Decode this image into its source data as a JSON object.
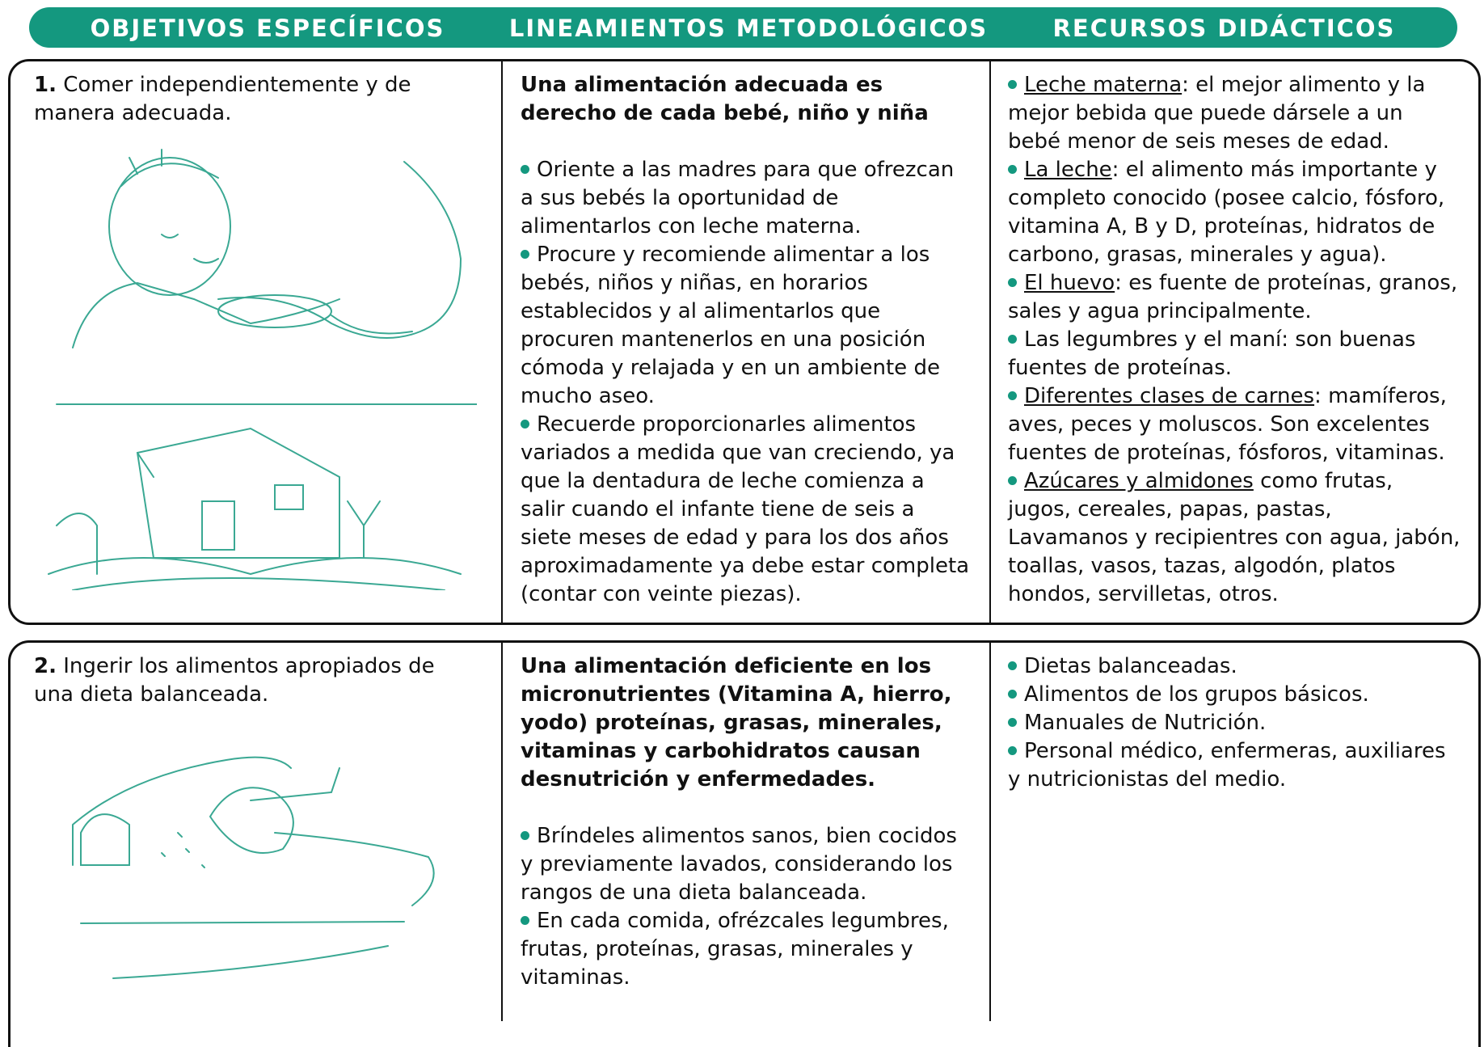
{
  "header": {
    "columns": [
      "OBJETIVOS ESPECÍFICOS",
      "LINEAMIENTOS METODOLÓGICOS",
      "RECURSOS DIDÁCTICOS"
    ]
  },
  "rows": [
    {
      "number": "1.",
      "objective": "Comer independientemente y de manera adecuada.",
      "method_title": "Una alimentación adecuada es derecho de cada bebé, niño y niña",
      "method_items": [
        "Oriente a las madres para que ofrezcan a sus bebés la oportunidad de alimentarlos con leche materna.",
        "Procure y recomiende alimentar a los bebés, niños y niñas, en horarios establecidos y al alimentarlos que procuren mantenerlos en una posición cómoda y relajada y en un ambiente de mucho aseo.",
        "Recuerde proporcionarles alimentos variados a medida que van creciendo, ya que la dentadura de leche comienza a salir cuando el infante tiene de seis a siete meses de edad y para los dos años aproximadamente ya debe estar completa (contar con veinte piezas)."
      ],
      "resources": [
        {
          "underlined": "Leche materna",
          "text": ": el mejor alimento y la mejor bebida que puede dársele a un bebé menor de seis meses de edad."
        },
        {
          "underlined": "La leche",
          "text": ": el alimento más importante y completo conocido (posee calcio, fósforo, vitamina A, B y D, proteínas, hidratos de carbono, grasas, minerales y agua)."
        },
        {
          "underlined": "El huevo",
          "text": ": es fuente de proteínas, granos, sales y agua principalmente."
        },
        {
          "text": "Las legumbres y el maní: son buenas fuentes de proteínas."
        },
        {
          "underlined": "Diferentes clases de carnes",
          "text": ": mamíferos, aves, peces y moluscos. Son excelentes fuentes de proteínas, fósforos, vitaminas."
        },
        {
          "underlined": "Azúcares y almidones",
          "text": " como frutas, jugos, cereales, papas, pastas,"
        }
      ],
      "resources_note": "Lavamanos y recipientres con agua, jabón, toallas, vasos, tazas, algodón, platos hondos, servilletas, otros."
    },
    {
      "number": "2.",
      "objective": "Ingerir los alimentos apropiados de una dieta balanceada.",
      "method_title": "Una alimentación deficiente en los micronutrientes (Vitamina A, hierro, yodo) proteínas, grasas, minerales, vitaminas y carbohidratos causan desnutrición y enfermedades.",
      "method_items": [
        "Bríndeles alimentos sanos, bien cocidos y previamente lavados, considerando los rangos de una dieta balanceada.",
        "En cada comida, ofrézcales legumbres, frutas, proteínas, grasas, minerales y vitaminas."
      ],
      "resources": [
        {
          "text": "Dietas balanceadas."
        },
        {
          "text": "Alimentos de los grupos básicos."
        },
        {
          "text": "Manuales de Nutrición."
        },
        {
          "text": "Personal médico, enfermeras, auxiliares y nutricionistas del medio."
        }
      ]
    }
  ]
}
